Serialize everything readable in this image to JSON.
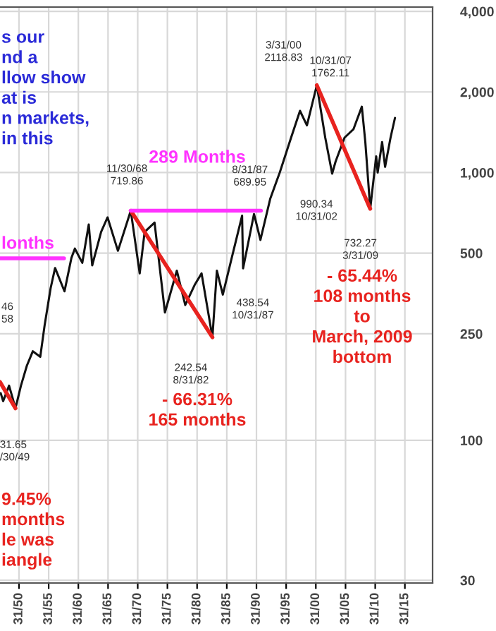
{
  "chart_data": {
    "type": "line",
    "log": "y",
    "grid": true,
    "xlim": [
      "1946-11-20",
      "2019-10-01"
    ],
    "xticks": [
      {
        "value": "1950-01-31",
        "label": "31/50"
      },
      {
        "value": "1955-01-31",
        "label": "31/55"
      },
      {
        "value": "1960-01-31",
        "label": "31/60"
      },
      {
        "value": "1965-01-31",
        "label": "31/65"
      },
      {
        "value": "1970-01-31",
        "label": "31/70"
      },
      {
        "value": "1975-01-31",
        "label": "31/75"
      },
      {
        "value": "1980-01-31",
        "label": "31/80"
      },
      {
        "value": "1985-01-31",
        "label": "31/85"
      },
      {
        "value": "1990-01-31",
        "label": "31/90"
      },
      {
        "value": "1995-01-31",
        "label": "31/95"
      },
      {
        "value": "2000-01-31",
        "label": "31/00"
      },
      {
        "value": "2005-01-31",
        "label": "31/05"
      },
      {
        "value": "2010-01-31",
        "label": "31/10"
      },
      {
        "value": "2015-01-31",
        "label": "31/15"
      }
    ],
    "ylim": [
      29.3,
      4150
    ],
    "yticks": [
      30,
      100,
      250,
      500,
      {
        "value": 1000,
        "label": "1,000"
      },
      {
        "value": 2000,
        "label": "2,000"
      },
      {
        "value": 4000,
        "label": "4,000"
      }
    ],
    "series": [
      {
        "color": "#111111",
        "x": [
          "1947-01",
          "1947-06",
          "1948-06",
          "1949-06-30",
          "1950-06",
          "1951-06",
          "1952-06",
          "1953-09",
          "1954-06",
          "1955-06",
          "1956-03",
          "1957-10",
          "1958-12",
          "1959-07",
          "1960-10",
          "1961-11",
          "1962-06",
          "1963-12",
          "1965-01",
          "1966-10",
          "1968-11-30",
          "1970-06",
          "1971-04",
          "1972-12",
          "1974-09",
          "1976-09",
          "1978-02",
          "1979-09",
          "1980-11",
          "1982-08-31",
          "1983-06",
          "1984-06",
          "1985-12",
          "1987-08-31",
          "1987-10-31",
          "1989-09",
          "1990-10",
          "1992-06",
          "1994-01",
          "1995-12",
          "1997-06",
          "1998-08",
          "2000-03-31",
          "2001-09",
          "2002-10-31",
          "2003-06",
          "2004-12",
          "2006-06",
          "2007-10-31",
          "2008-06",
          "2009-03-31",
          "2010-04",
          "2010-07",
          "2011-04",
          "2011-10",
          "2012-09",
          "2013-06"
        ],
        "values": [
          150,
          140,
          160,
          131.65,
          160,
          190,
          215,
          205,
          270,
          370,
          440,
          360,
          480,
          520,
          460,
          640,
          450,
          600,
          680,
          510,
          719.86,
          420,
          600,
          650,
          300,
          430,
          320,
          380,
          420,
          242.54,
          430,
          350,
          480,
          689.95,
          438.54,
          700,
          560,
          800,
          1000,
          1350,
          1700,
          1500,
          2118.83,
          1350,
          990.34,
          1100,
          1350,
          1450,
          1762.11,
          1300,
          732.27,
          1150,
          1000,
          1300,
          1050,
          1350,
          1600
        ]
      },
      {
        "color": "#e8231f",
        "x": [
          "1968-11-30",
          "1982-08-31"
        ],
        "values": [
          719.86,
          242.54
        ]
      },
      {
        "color": "#e8231f",
        "x": [
          "2000-03-31",
          "2009-03-31"
        ],
        "values": [
          2118.83,
          732.27
        ]
      },
      {
        "color": "#e8231f",
        "x": [
          "1946-11-20",
          "1949-06-30"
        ],
        "values": [
          165,
          131.65
        ]
      },
      {
        "color": "#ff33ff",
        "x": [
          "1968-11-30",
          "1990-10-31"
        ],
        "values": [
          719.86,
          719.86
        ]
      },
      {
        "color": "#ff33ff",
        "x": [
          "1946-11-20",
          "1957-08-31"
        ],
        "values": [
          478,
          478
        ]
      }
    ],
    "annotations": [
      "s our\nnd a\nllow show\nat is\nn markets,\nin this",
      "289 Months",
      "lonths",
      "46\n58",
      {
        "text": "31.65\n/30/49",
        "x": "1949-06-30",
        "y": 131.65
      },
      {
        "text": "11/30/68\n719.86",
        "x": "1968-11-30",
        "y": 719.86
      },
      {
        "text": "242.54\n8/31/82",
        "x": "1982-08-31",
        "y": 242.54
      },
      "- 66.31%\n165 months",
      {
        "text": "8/31/87\n689.95",
        "x": "1987-08-31",
        "y": 689.95
      },
      {
        "text": "438.54\n10/31/87",
        "x": "1987-10-31",
        "y": 438.54
      },
      {
        "text": "3/31/00\n2118.83",
        "x": "2000-03-31",
        "y": 2118.83
      },
      {
        "text": "10/31/07\n1762.11",
        "x": "2007-10-31",
        "y": 1762.11
      },
      {
        "text": "990.34\n10/31/02",
        "x": "2002-10-31",
        "y": 990.34
      },
      {
        "text": "732.27\n3/31/09",
        "x": "2009-03-31",
        "y": 732.27
      },
      "- 65.44%\n108 months\nto\nMarch, 2009\nbottom",
      "9.45%\nmonths\nle was\niangle"
    ]
  }
}
